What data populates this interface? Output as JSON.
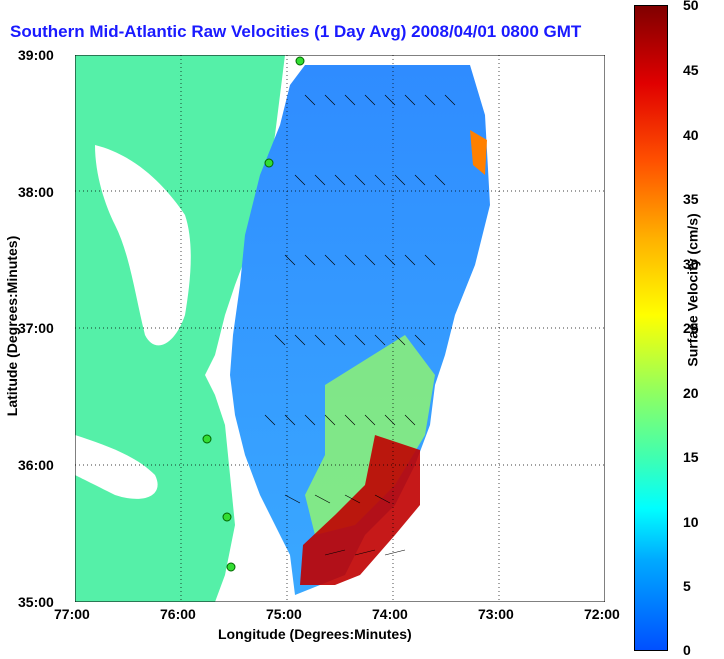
{
  "title": "Southern Mid-Atlantic Raw Velocities (1 Day Avg) 2008/04/01 0800 GMT",
  "yaxis": {
    "label": "Latitude (Degrees:Minutes)",
    "ticks": [
      "39:00",
      "38:00",
      "37:00",
      "36:00",
      "35:00"
    ]
  },
  "xaxis": {
    "label": "Longitude (Degrees:Minutes)",
    "ticks": [
      "77:00",
      "76:00",
      "75:00",
      "74:00",
      "73:00",
      "72:00"
    ]
  },
  "colorbar": {
    "label": "Surface Velocity (cm/s)",
    "ticks": [
      "50",
      "45",
      "40",
      "35",
      "30",
      "25",
      "20",
      "15",
      "10",
      "5",
      "0"
    ],
    "range": [
      0,
      50
    ]
  },
  "map": {
    "lat_range": [
      35,
      39
    ],
    "lon_range": [
      -77,
      -72
    ],
    "land_color": "#55f0a8",
    "vector_color": "#000000",
    "stations": [
      "green",
      "green",
      "green",
      "green",
      "green"
    ]
  }
}
